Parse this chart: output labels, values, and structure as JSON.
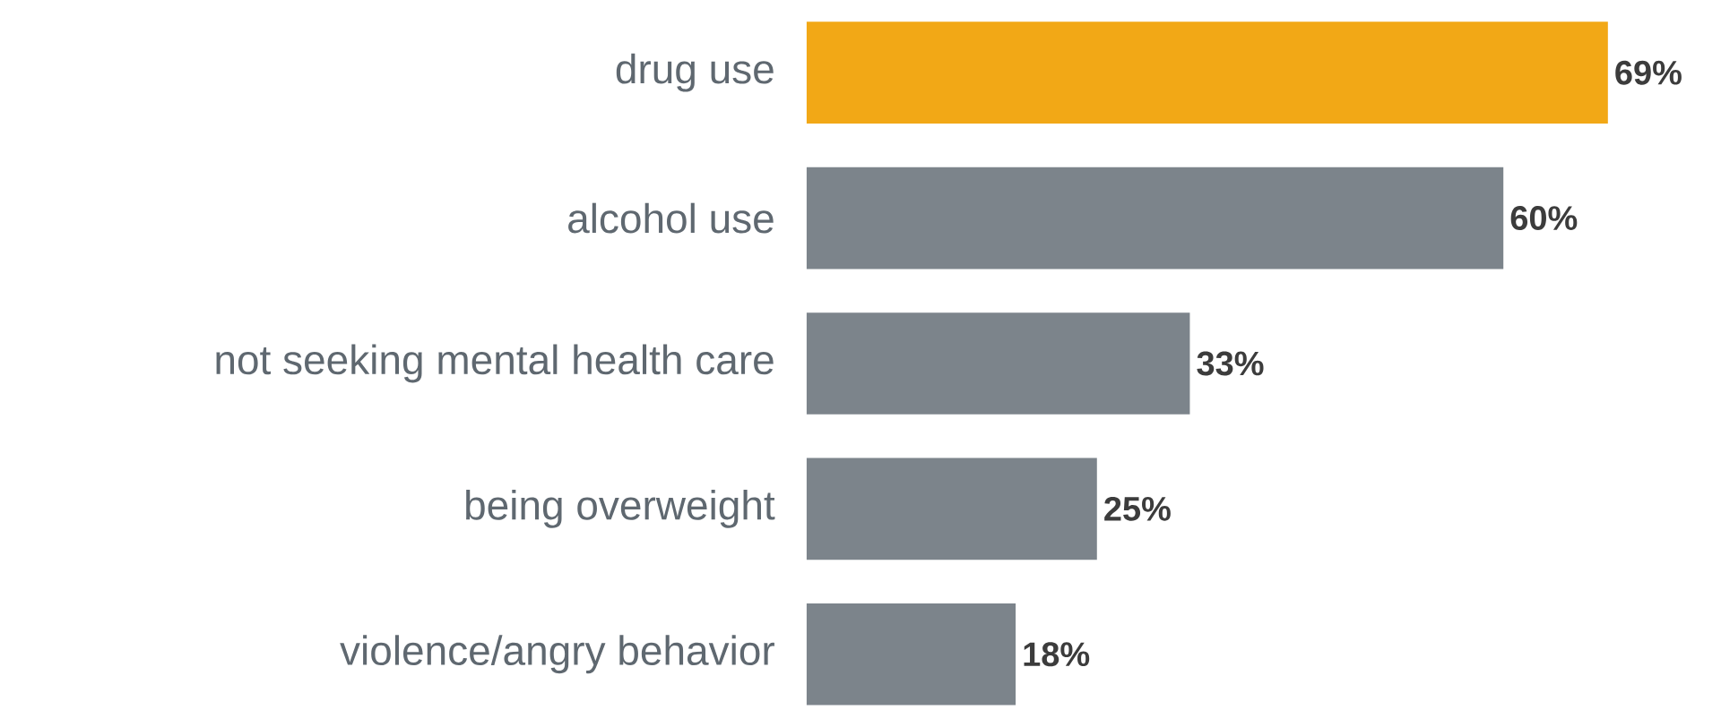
{
  "chart_data": {
    "type": "bar",
    "orientation": "horizontal",
    "categories": [
      "drug use",
      "alcohol use",
      "not seeking mental health care",
      "being overweight",
      "violence/angry behavior"
    ],
    "values": [
      69,
      60,
      33,
      25,
      18
    ],
    "colors": [
      "#f2a816",
      "#7c848b",
      "#7c848b",
      "#7c848b",
      "#7c848b"
    ],
    "value_labels": [
      "69%",
      "60%",
      "33%",
      "25%",
      "18%"
    ]
  }
}
